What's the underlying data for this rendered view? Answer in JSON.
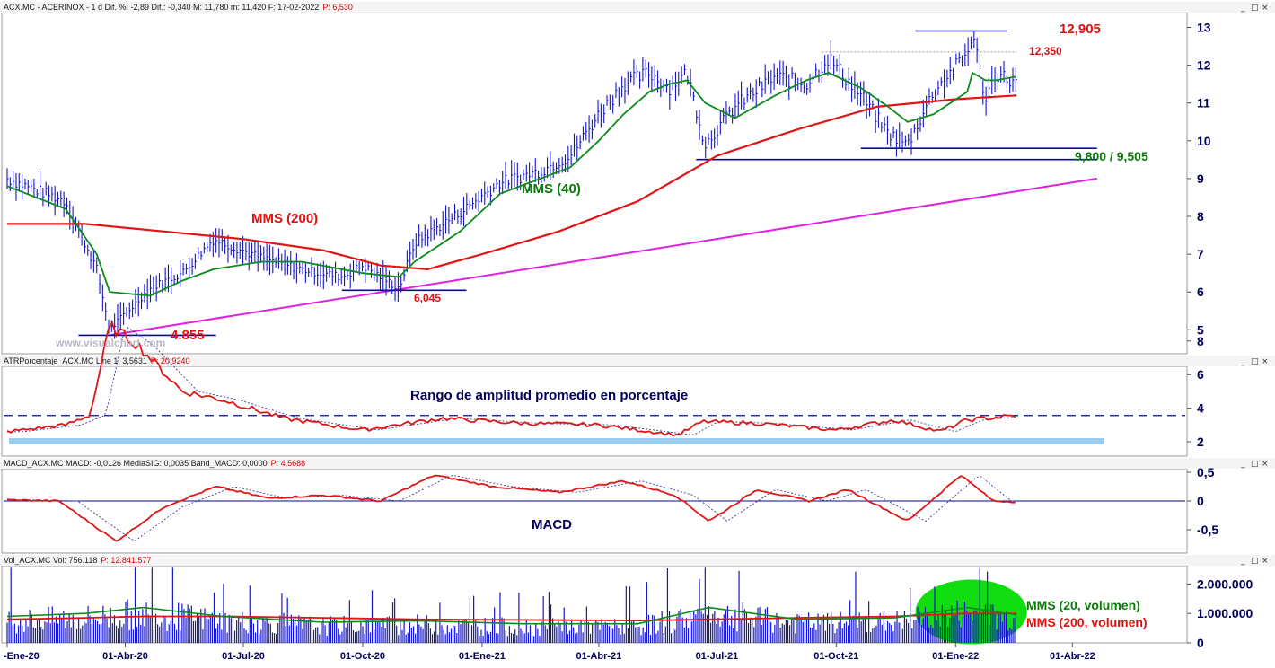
{
  "headers": {
    "price": "ACX.MC - ACERINOX -  1 d  Dif. %: -2,89  Dif.: -0,340  M: 11,780  m: 11,420  F: 17-02-2022",
    "price_p": "P: 6,530",
    "atr": "ATRPorcentaje_ACX.MC  Line 1: 3,5631",
    "atr_p": "P: 20,9240",
    "macd": "MACD_ACX.MC  MACD: -0,0126  MediaSIG: 0,0035  Band_MACD: 0,0000",
    "macd_p": "P: 4,5688",
    "vol": "Vol_ACX.MC  Vol: 756.118",
    "vol_p": "P: 12.841.577"
  },
  "icons": {
    "minimize": "_",
    "maximize": "□",
    "close": "×"
  },
  "annotations": {
    "high": "12,905",
    "resist": "12,350",
    "support": "9,800 / 9,505",
    "mms200": "MMS (200)",
    "mms40": "MMS (40)",
    "low2": "6,045",
    "low1": "4.855",
    "watermark": "www.visualchart.com",
    "atr_title": "Rango de amplitud promedio en porcentaje",
    "macd_title": "MACD",
    "vol20": "MMS (20, volumen)",
    "vol200": "MMS (200, volumen)"
  },
  "colors": {
    "bars": "#1515c8",
    "mms40": "#0c8a1c",
    "mms200": "#e01616",
    "trend": "#e020e0",
    "level": "#0a0a9a",
    "axis_text": "#00005a",
    "atr_band": "#9ccbf0",
    "highlight": "#11dd11"
  },
  "chart_data": [
    {
      "type": "line",
      "name": "price",
      "x_ticks": [
        "-Ene-20",
        "01-Abr-20",
        "01-Jul-20",
        "01-Oct-20",
        "01-Ene-21",
        "01-Abr-21",
        "01-Jul-21",
        "01-Oct-21",
        "01-Ene-22",
        "01-Abr-22"
      ],
      "y_ticks": [
        "13",
        "12",
        "11",
        "10",
        "9",
        "8",
        "7",
        "6",
        "5"
      ],
      "ylim": [
        4.5,
        13.4
      ],
      "x": [
        "2020-01-01",
        "2020-02-15",
        "2020-03-10",
        "2020-03-20",
        "2020-04-20",
        "2020-05-15",
        "2020-06-08",
        "2020-07-15",
        "2020-08-15",
        "2020-09-15",
        "2020-10-01",
        "2020-10-29",
        "2020-11-10",
        "2020-12-15",
        "2021-01-15",
        "2021-02-15",
        "2021-03-10",
        "2021-04-01",
        "2021-04-20",
        "2021-05-10",
        "2021-05-25",
        "2021-06-08",
        "2021-06-22",
        "2021-07-15",
        "2021-08-15",
        "2021-09-08",
        "2021-09-25",
        "2021-10-20",
        "2021-11-10",
        "2021-11-25",
        "2021-12-15",
        "2022-01-10",
        "2022-01-14",
        "2022-01-24",
        "2022-02-01",
        "2022-02-17"
      ],
      "close": [
        9.0,
        8.4,
        6.6,
        5.0,
        6.1,
        6.5,
        7.4,
        6.9,
        6.6,
        6.4,
        6.7,
        6.1,
        7.3,
        8.1,
        8.9,
        9.2,
        9.6,
        10.7,
        11.5,
        11.8,
        11.4,
        11.8,
        9.9,
        10.9,
        11.7,
        11.5,
        12.2,
        11.2,
        10.2,
        9.9,
        11.3,
        12.3,
        12.9,
        11.1,
        11.8,
        11.5
      ],
      "mms40": [
        8.8,
        8.2,
        7.0,
        6.0,
        5.9,
        6.3,
        6.6,
        6.8,
        6.8,
        6.6,
        6.5,
        6.4,
        6.8,
        7.6,
        8.6,
        9.0,
        9.3,
        10.0,
        10.7,
        11.3,
        11.5,
        11.6,
        11.0,
        10.6,
        11.2,
        11.6,
        11.8,
        11.4,
        10.9,
        10.5,
        10.7,
        11.3,
        11.8,
        11.6,
        11.6,
        11.7
      ],
      "mms200_x": [
        "2020-01-01",
        "2020-03-01",
        "2020-05-01",
        "2020-07-01",
        "2020-09-01",
        "2020-10-15",
        "2020-11-20",
        "2021-01-01",
        "2021-03-01",
        "2021-05-01",
        "2021-07-01",
        "2021-09-01",
        "2021-11-01",
        "2022-01-01",
        "2022-02-17"
      ],
      "mms200": [
        7.8,
        7.8,
        7.6,
        7.4,
        7.1,
        6.7,
        6.6,
        7.0,
        7.6,
        8.4,
        9.6,
        10.3,
        10.9,
        11.1,
        11.2
      ],
      "levels": [
        {
          "value": 12.905,
          "from": "2021-12-01",
          "to": "2022-02-10",
          "color": "level"
        },
        {
          "value": 12.35,
          "from": "2021-09-20",
          "to": "2022-02-17",
          "color": "dotted"
        },
        {
          "value": 9.8,
          "from": "2021-10-20",
          "to": "2022-04-20",
          "color": "level"
        },
        {
          "value": 9.505,
          "from": "2021-06-15",
          "to": "2022-04-20",
          "color": "level"
        },
        {
          "value": 6.045,
          "from": "2020-09-15",
          "to": "2020-12-20",
          "color": "level"
        },
        {
          "value": 4.855,
          "from": "2020-02-25",
          "to": "2020-06-10",
          "color": "level"
        }
      ],
      "trendline": {
        "from": [
          "2020-03-20",
          4.855
        ],
        "to": [
          "2022-04-20",
          9.0
        ]
      }
    },
    {
      "type": "line",
      "name": "atr_pct",
      "y_ticks": [
        "8",
        "6",
        "4",
        "2"
      ],
      "ylim": [
        1.5,
        9.5
      ],
      "ref_level": 3.5631,
      "x": [
        "2020-01-01",
        "2020-02-15",
        "2020-03-05",
        "2020-03-20",
        "2020-04-10",
        "2020-05-15",
        "2020-06-15",
        "2020-08-01",
        "2020-10-01",
        "2020-12-01",
        "2021-02-01",
        "2021-04-01",
        "2021-06-01",
        "2021-06-20",
        "2021-08-01",
        "2021-10-01",
        "2021-11-15",
        "2021-12-20",
        "2022-01-10",
        "2022-02-17"
      ],
      "values": [
        2.6,
        3.0,
        3.6,
        8.9,
        7.8,
        5.0,
        4.5,
        3.4,
        2.7,
        3.4,
        3.1,
        3.0,
        2.4,
        3.2,
        3.1,
        2.7,
        3.3,
        2.6,
        3.3,
        3.56
      ]
    },
    {
      "type": "line",
      "name": "macd",
      "y_ticks": [
        "0,5",
        "0",
        "-0,5"
      ],
      "ylim": [
        -0.8,
        0.6
      ],
      "x": [
        "2020-01-01",
        "2020-02-10",
        "2020-03-25",
        "2020-05-01",
        "2020-06-10",
        "2020-07-20",
        "2020-09-01",
        "2020-10-15",
        "2020-11-25",
        "2021-01-10",
        "2021-03-01",
        "2021-04-20",
        "2021-05-30",
        "2021-06-25",
        "2021-08-01",
        "2021-09-10",
        "2021-10-10",
        "2021-11-25",
        "2022-01-05",
        "2022-01-30",
        "2022-02-17"
      ],
      "values": [
        0.02,
        0.0,
        -0.7,
        -0.1,
        0.25,
        0.05,
        0.1,
        0.0,
        0.45,
        0.25,
        0.15,
        0.35,
        0.1,
        -0.35,
        0.2,
        0.0,
        0.2,
        -0.35,
        0.45,
        0.0,
        -0.0126
      ]
    },
    {
      "type": "bar",
      "name": "volume",
      "y_ticks": [
        "2.000.000",
        "1.000.000",
        "0"
      ],
      "ylim": [
        0,
        2600000
      ],
      "x": [
        "2020-01-01",
        "2020-03-01",
        "2020-04-15",
        "2020-06-15",
        "2020-09-01",
        "2020-11-15",
        "2021-02-01",
        "2021-05-01",
        "2021-06-25",
        "2021-09-01",
        "2021-11-15",
        "2022-01-10",
        "2022-02-17"
      ],
      "mms20": [
        900000,
        1000000,
        1200000,
        900000,
        700000,
        750000,
        650000,
        650000,
        1200000,
        800000,
        850000,
        1200000,
        950000
      ],
      "mms200": [
        800000,
        850000,
        900000,
        900000,
        850000,
        800000,
        780000,
        760000,
        800000,
        850000,
        900000,
        1000000,
        1000000
      ],
      "highlight": {
        "from": "2021-12-01",
        "to": "2022-02-25",
        "center_value": 1050000
      }
    }
  ]
}
